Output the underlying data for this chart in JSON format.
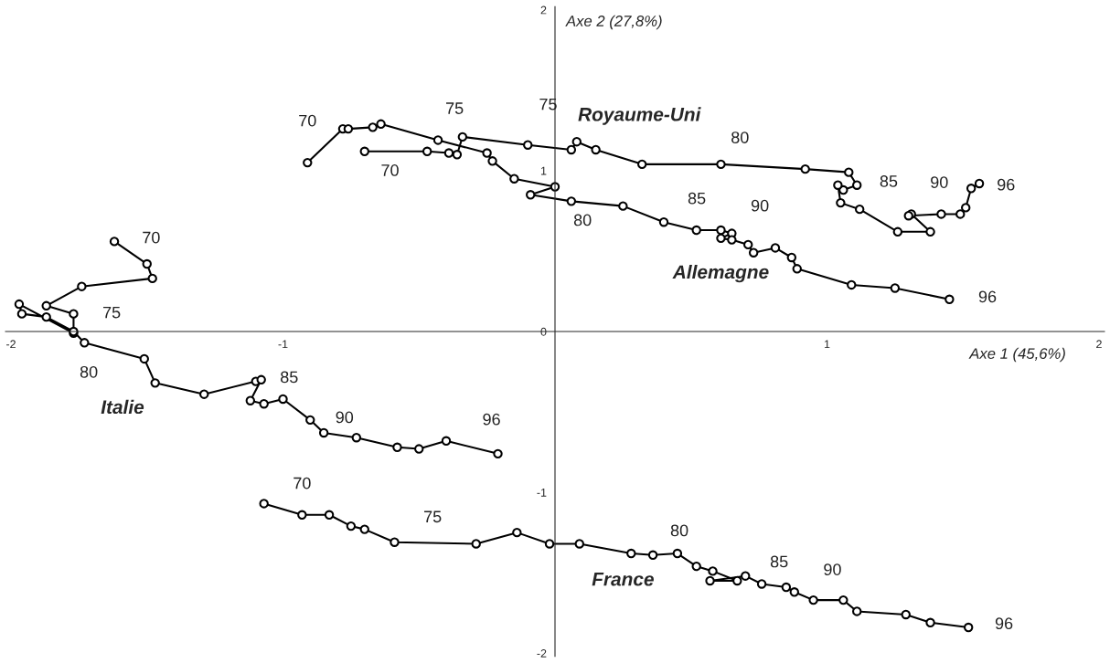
{
  "chart_data": {
    "type": "line",
    "xlabel": "Axe 1 (45,6%)",
    "ylabel": "Axe 2 (27,8%)",
    "xlim": [
      -2.02,
      2.02
    ],
    "ylim": [
      -2.02,
      2.02
    ],
    "xticks": [
      -2,
      -1,
      1,
      2
    ],
    "yticks": [
      -2,
      -1,
      0,
      1,
      2
    ],
    "grid": false,
    "legend": false,
    "marker": "circle",
    "line_style": "solid",
    "series": [
      {
        "name": "Royaume-Uni",
        "color": "#000000",
        "x": [
          -0.7,
          -0.47,
          -0.39,
          -0.36,
          -0.34,
          -0.1,
          0.06,
          0.08,
          0.15,
          0.32,
          0.61,
          0.92,
          1.08,
          1.11,
          1.06,
          1.04,
          1.05,
          1.12,
          1.26,
          1.38,
          1.31,
          1.3,
          1.42,
          1.49,
          1.51,
          1.53,
          1.56
        ],
        "values": [
          1.12,
          1.12,
          1.11,
          1.1,
          1.21,
          1.16,
          1.13,
          1.18,
          1.13,
          1.04,
          1.04,
          1.01,
          0.99,
          0.91,
          0.88,
          0.91,
          0.8,
          0.76,
          0.62,
          0.62,
          0.73,
          0.72,
          0.73,
          0.73,
          0.77,
          0.89,
          0.92
        ]
      },
      {
        "name": "Allemagne",
        "color": "#000000",
        "x": [
          -0.91,
          -0.78,
          -0.76,
          -0.67,
          -0.64,
          -0.43,
          -0.25,
          -0.23,
          -0.15,
          0.0,
          -0.09,
          0.06,
          0.25,
          0.4,
          0.52,
          0.61,
          0.65,
          0.61,
          0.65,
          0.71,
          0.73,
          0.81,
          0.87,
          0.89,
          1.09,
          1.25,
          1.45
        ],
        "values": [
          1.05,
          1.26,
          1.26,
          1.27,
          1.29,
          1.19,
          1.11,
          1.06,
          0.95,
          0.9,
          0.85,
          0.81,
          0.78,
          0.68,
          0.63,
          0.63,
          0.61,
          0.58,
          0.57,
          0.54,
          0.49,
          0.52,
          0.46,
          0.39,
          0.29,
          0.27,
          0.2
        ]
      },
      {
        "name": "Italie",
        "color": "#000000",
        "x": [
          -1.62,
          -1.5,
          -1.48,
          -1.74,
          -1.87,
          -1.77,
          -1.77,
          -1.97,
          -1.96,
          -1.87,
          -1.77,
          -1.73,
          -1.51,
          -1.47,
          -1.29,
          -1.1,
          -1.08,
          -1.12,
          -1.07,
          -1.0,
          -0.9,
          -0.85,
          -0.73,
          -0.58,
          -0.5,
          -0.4,
          -0.21
        ],
        "values": [
          0.56,
          0.42,
          0.33,
          0.28,
          0.16,
          0.11,
          -0.01,
          0.17,
          0.11,
          0.09,
          0.0,
          -0.07,
          -0.17,
          -0.32,
          -0.39,
          -0.31,
          -0.3,
          -0.43,
          -0.45,
          -0.42,
          -0.55,
          -0.63,
          -0.66,
          -0.72,
          -0.73,
          -0.68,
          -0.76
        ]
      },
      {
        "name": "France",
        "color": "#000000",
        "x": [
          -1.07,
          -0.93,
          -0.83,
          -0.75,
          -0.7,
          -0.59,
          -0.29,
          -0.14,
          -0.02,
          0.09,
          0.28,
          0.36,
          0.45,
          0.52,
          0.58,
          0.67,
          0.57,
          0.7,
          0.76,
          0.85,
          0.88,
          0.95,
          1.06,
          1.11,
          1.29,
          1.38,
          1.52
        ],
        "values": [
          -1.07,
          -1.14,
          -1.14,
          -1.21,
          -1.23,
          -1.31,
          -1.32,
          -1.25,
          -1.32,
          -1.32,
          -1.38,
          -1.39,
          -1.38,
          -1.46,
          -1.49,
          -1.55,
          -1.55,
          -1.52,
          -1.57,
          -1.59,
          -1.62,
          -1.67,
          -1.67,
          -1.74,
          -1.76,
          -1.81,
          -1.84
        ]
      }
    ],
    "annotations": [
      {
        "text": "70",
        "x": -0.91,
        "y": 1.05
      },
      {
        "text": "75",
        "x": -0.43,
        "y": 1.19
      },
      {
        "text": "80",
        "x": -0.09,
        "y": 0.85
      },
      {
        "text": "85",
        "x": 0.61,
        "y": 0.63
      },
      {
        "text": "90",
        "x": 0.73,
        "y": 0.49
      },
      {
        "text": "96",
        "x": 1.45,
        "y": 0.2
      },
      {
        "text": "70",
        "x": -0.7,
        "y": 1.12
      },
      {
        "text": "75",
        "x": -0.1,
        "y": 1.16
      },
      {
        "text": "80",
        "x": 0.61,
        "y": 1.04
      },
      {
        "text": "85",
        "x": 1.04,
        "y": 0.91
      },
      {
        "text": "90",
        "x": 1.31,
        "y": 0.73
      },
      {
        "text": "96",
        "x": 1.56,
        "y": 0.92
      },
      {
        "text": "70",
        "x": -1.62,
        "y": 0.56
      },
      {
        "text": "75",
        "x": -1.77,
        "y": 0.11
      },
      {
        "text": "80",
        "x": -1.77,
        "y": 0.0
      },
      {
        "text": "85",
        "x": -1.08,
        "y": -0.3
      },
      {
        "text": "90",
        "x": -0.9,
        "y": -0.55
      },
      {
        "text": "96",
        "x": -0.21,
        "y": -0.76
      },
      {
        "text": "70",
        "x": -1.07,
        "y": -1.07
      },
      {
        "text": "75",
        "x": -0.59,
        "y": -1.31
      },
      {
        "text": "80",
        "x": 0.28,
        "y": -1.38
      },
      {
        "text": "85",
        "x": 0.67,
        "y": -1.55
      },
      {
        "text": "90",
        "x": 0.95,
        "y": -1.67
      },
      {
        "text": "96",
        "x": 1.52,
        "y": -1.84
      }
    ]
  }
}
